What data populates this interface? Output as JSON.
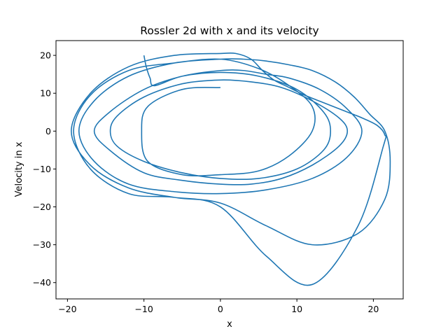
{
  "chart_data": {
    "type": "line",
    "title": "Rossler 2d with x and its velocity",
    "xlabel": "x",
    "ylabel": "Velocity in x",
    "xlim": [
      -21.5,
      23.9
    ],
    "ylim": [
      -44.3,
      23.9
    ],
    "xticks": [
      -20,
      -10,
      0,
      10,
      20
    ],
    "xtick_labels": [
      "−20",
      "−10",
      "0",
      "10",
      "20"
    ],
    "yticks": [
      -40,
      -30,
      -20,
      -10,
      0,
      10,
      20
    ],
    "ytick_labels": [
      "−40",
      "−30",
      "−20",
      "−10",
      "0",
      "10",
      "20"
    ],
    "grid": false,
    "legend": "none",
    "color": "#1f77b4",
    "series": [
      {
        "description_of_shape": "Rossler attractor projected onto (x, dx/dt); trajectory starts near (-10, 20) and spirals into a band of loops",
        "x": [
          -10.0,
          -9.7,
          -9.2,
          -8.6,
          -5,
          0,
          5,
          10,
          13.5,
          14.4,
          13.5,
          10,
          5,
          0,
          -5,
          -10,
          -13.5,
          -14.4,
          -13.5,
          -10,
          -5,
          0,
          4,
          8,
          12,
          15.5,
          16.6,
          15.5,
          12,
          8,
          4,
          0,
          -5,
          -10,
          -14.5,
          -16.5,
          -14.5,
          -10,
          -5,
          0,
          3,
          6,
          9,
          13,
          16.5,
          18.5,
          16.5,
          12,
          6,
          0,
          -6,
          -12,
          -16.5,
          -18.5,
          -16.5,
          -12,
          -6,
          0,
          3,
          6,
          9,
          12,
          15,
          17.5,
          19.5,
          21.5,
          22.2,
          21.5,
          18,
          12,
          6,
          0,
          -6,
          -12,
          -17,
          -19.5,
          -17,
          -12,
          -6,
          0,
          2,
          4,
          5.5,
          7,
          9,
          11,
          13.5,
          16,
          18.5,
          20.5,
          21.5,
          21.3,
          18,
          12,
          6,
          0,
          -6,
          -12,
          -17,
          -19.2,
          -17,
          -12,
          -6,
          0,
          5,
          9,
          12,
          12,
          9,
          5,
          0,
          -5,
          -9.5,
          -10.3,
          -9.5,
          -5,
          0
        ],
        "y": [
          20.0,
          17.0,
          14.0,
          12.0,
          14.5,
          15.5,
          14.5,
          11.0,
          5.0,
          0.0,
          -5.0,
          -10.0,
          -12.5,
          -12.5,
          -11.0,
          -8.0,
          -4.0,
          0.0,
          4.0,
          9.0,
          12.5,
          13.5,
          13.0,
          11.5,
          8.0,
          3.5,
          0.0,
          -4.0,
          -9.0,
          -12.5,
          -14.0,
          -14.0,
          -13.0,
          -11.0,
          -5.0,
          0.0,
          5.0,
          11.0,
          14.5,
          16.0,
          16.0,
          15.0,
          14.0,
          11.0,
          6.0,
          0.0,
          -7.0,
          -12.5,
          -15.5,
          -16.5,
          -16.0,
          -14.0,
          -8.0,
          0.0,
          8.0,
          14.5,
          18.0,
          19.0,
          19.0,
          18.5,
          17.5,
          16.0,
          13.0,
          9.0,
          4.5,
          0.0,
          -8.0,
          -18.0,
          -27.0,
          -30.0,
          -25.0,
          -19.0,
          -17.5,
          -15.0,
          -9.0,
          0.0,
          10.0,
          17.0,
          20.0,
          20.5,
          20.5,
          19.0,
          16.0,
          13.5,
          11.5,
          9.5,
          7.5,
          5.5,
          3.5,
          1.5,
          -1.0,
          -4.0,
          -25.0,
          -40.5,
          -33.0,
          -20.0,
          -17.5,
          -16.5,
          -10.0,
          0.0,
          9.5,
          16.0,
          18.0,
          19.0,
          16.5,
          12.0,
          6.5,
          0.0,
          -6.5,
          -10.5,
          -11.5,
          -11.5,
          -8.0,
          0.0,
          6.5,
          11.0,
          11.5
        ]
      }
    ]
  }
}
